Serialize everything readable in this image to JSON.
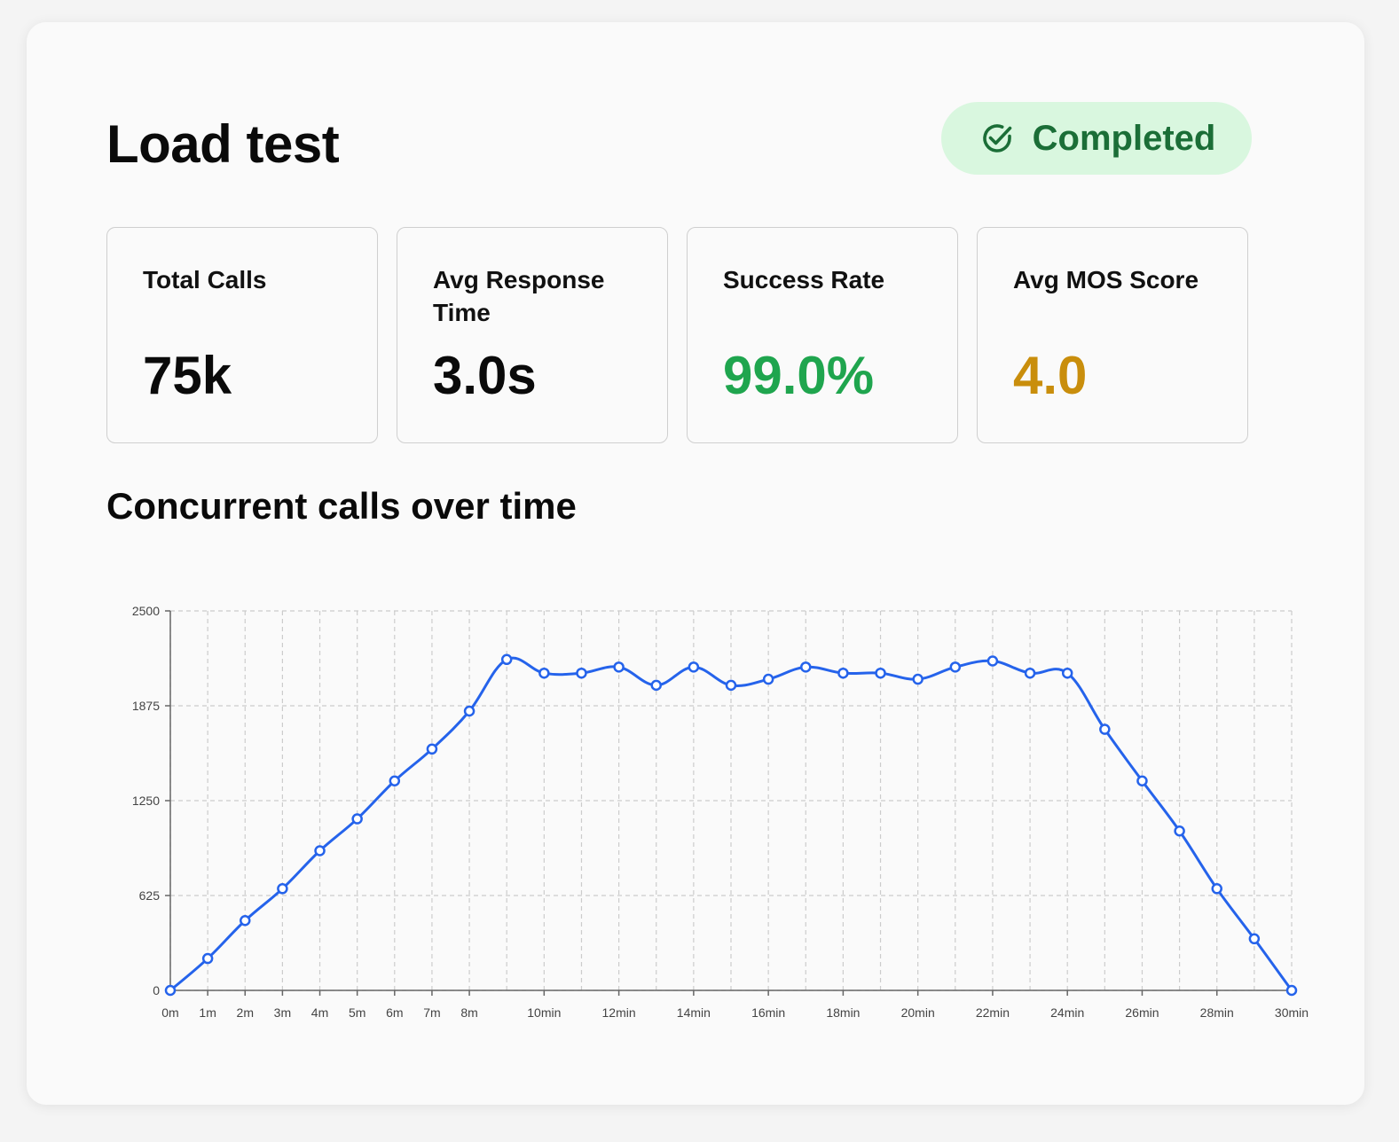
{
  "header": {
    "title": "Load test",
    "status_label": "Completed"
  },
  "colors": {
    "status_bg": "#d9f7df",
    "status_text": "#1b6e37",
    "success": "#1fa54e",
    "mos": "#c98e0c",
    "series": "#2563eb"
  },
  "metrics": [
    {
      "label": "Total Calls",
      "value": "75k"
    },
    {
      "label": "Avg Response Time",
      "value": "3.0s"
    },
    {
      "label": "Success Rate",
      "value": "99.0%"
    },
    {
      "label": "Avg MOS Score",
      "value": "4.0"
    }
  ],
  "chart_section": {
    "title": "Concurrent calls over time"
  },
  "chart_data": {
    "type": "line",
    "title": "Concurrent calls over time",
    "xlabel": "",
    "ylabel": "",
    "x": [
      0,
      1,
      2,
      3,
      4,
      5,
      6,
      7,
      8,
      9,
      10,
      11,
      12,
      13,
      14,
      15,
      16,
      17,
      18,
      19,
      20,
      21,
      22,
      23,
      24,
      25,
      26,
      27,
      28,
      29,
      30
    ],
    "x_tick_labels": [
      {
        "x": 0,
        "label": "0m"
      },
      {
        "x": 1,
        "label": "1m"
      },
      {
        "x": 2,
        "label": "2m"
      },
      {
        "x": 3,
        "label": "3m"
      },
      {
        "x": 4,
        "label": "4m"
      },
      {
        "x": 5,
        "label": "5m"
      },
      {
        "x": 6,
        "label": "6m"
      },
      {
        "x": 7,
        "label": "7m"
      },
      {
        "x": 8,
        "label": "8m"
      },
      {
        "x": 10,
        "label": "10min"
      },
      {
        "x": 12,
        "label": "12min"
      },
      {
        "x": 14,
        "label": "14min"
      },
      {
        "x": 16,
        "label": "16min"
      },
      {
        "x": 18,
        "label": "18min"
      },
      {
        "x": 20,
        "label": "20min"
      },
      {
        "x": 22,
        "label": "22min"
      },
      {
        "x": 24,
        "label": "24min"
      },
      {
        "x": 26,
        "label": "26min"
      },
      {
        "x": 28,
        "label": "28min"
      },
      {
        "x": 30,
        "label": "30min"
      }
    ],
    "y_ticks": [
      0,
      625,
      1250,
      1875,
      2500
    ],
    "ylim": [
      0,
      2500
    ],
    "xlim": [
      0,
      30
    ],
    "grid": true,
    "series": [
      {
        "values": [
          0,
          210,
          460,
          670,
          920,
          1130,
          1380,
          1590,
          1840,
          2180,
          2090,
          2090,
          2130,
          2010,
          2130,
          2010,
          2050,
          2130,
          2090,
          2090,
          2050,
          2130,
          2170,
          2090,
          2090,
          1720,
          1380,
          1050,
          670,
          340,
          0
        ]
      }
    ]
  }
}
